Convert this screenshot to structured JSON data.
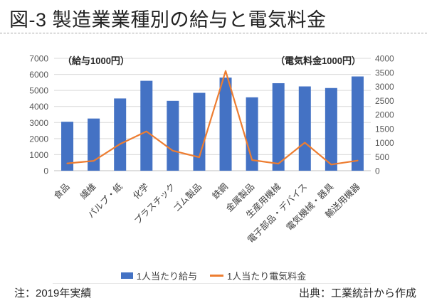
{
  "page": {
    "title": "図-3 製造業業種別の給与と電気料金",
    "note_left": "注：2019年実績",
    "note_right": "出典：工業統計から作成"
  },
  "chart_data": {
    "type": "bar+line",
    "title": "図-3 製造業業種別の給与と電気料金",
    "categories": [
      "食品",
      "繊維",
      "パルプ・紙",
      "化学",
      "プラスチック",
      "ゴム製品",
      "鉄鋼",
      "金属製品",
      "生産用機械",
      "電子部品・デバイス",
      "電気機械・器具",
      "輸送用機器"
    ],
    "series": [
      {
        "name": "1人当たり給与",
        "chart_type": "bar",
        "axis": "left",
        "color": "#4472C4",
        "values": [
          3050,
          3250,
          4500,
          5600,
          4350,
          4850,
          5800,
          4570,
          5450,
          5250,
          5150,
          5870
        ]
      },
      {
        "name": "1人当たり電気料金",
        "chart_type": "line",
        "axis": "right",
        "color": "#ED7D31",
        "values": [
          260,
          350,
          950,
          1400,
          710,
          480,
          3550,
          380,
          250,
          1000,
          220,
          360
        ]
      }
    ],
    "left_axis": {
      "title": "（給与1000円）",
      "min": 0,
      "max": 7000,
      "step": 1000
    },
    "right_axis": {
      "title": "（電気料金1000円）",
      "min": 0,
      "max": 4000,
      "step": 500
    },
    "grid": true,
    "legend_position": "bottom",
    "colors": {
      "bar": "#4472C4",
      "line": "#ED7D31",
      "gridline": "#d9d9d9",
      "baseline": "#bfbfbf"
    }
  }
}
